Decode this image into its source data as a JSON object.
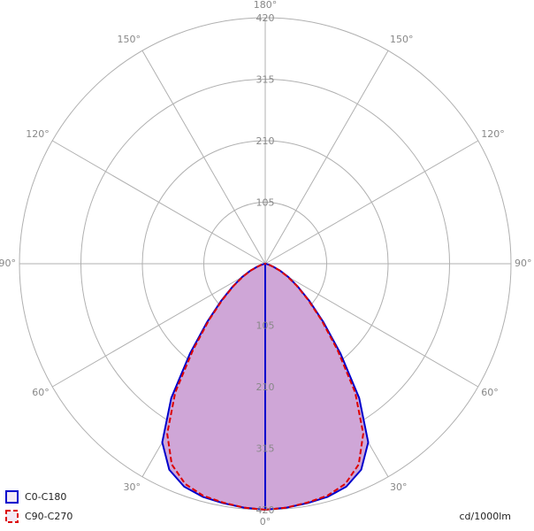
{
  "chart_data": {
    "type": "polar",
    "angles": [
      0,
      5,
      10,
      15,
      20,
      25,
      30,
      35,
      40,
      45,
      50,
      55,
      60,
      65,
      70,
      75,
      80,
      85,
      90
    ],
    "series": [
      {
        "name": "C0-C180",
        "color": "#0000cc",
        "dash": false,
        "values": [
          420,
          418,
          415,
          412,
          405,
          388,
          352,
          280,
          200,
          140,
          98,
          68,
          46,
          28,
          14,
          6,
          2,
          0,
          0
        ]
      },
      {
        "name": "C90-C270",
        "color": "#dd0000",
        "dash": true,
        "values": [
          420,
          418,
          414,
          410,
          400,
          378,
          335,
          268,
          192,
          136,
          95,
          66,
          44,
          27,
          13,
          6,
          2,
          0,
          0
        ]
      }
    ],
    "rlim": [
      0,
      420
    ],
    "rticks": [
      105,
      210,
      315,
      420
    ],
    "angle_ticks": [
      {
        "value": 0,
        "label": "0°"
      },
      {
        "value": 30,
        "label": "30°"
      },
      {
        "value": 60,
        "label": "60°"
      },
      {
        "value": 90,
        "label": "90°"
      },
      {
        "value": 120,
        "label": "120°"
      },
      {
        "value": 150,
        "label": "150°"
      },
      {
        "value": 180,
        "label": "180°"
      }
    ],
    "fill": "#cfa6d7",
    "unit": "cd/1000lm",
    "legend": "lower left"
  }
}
